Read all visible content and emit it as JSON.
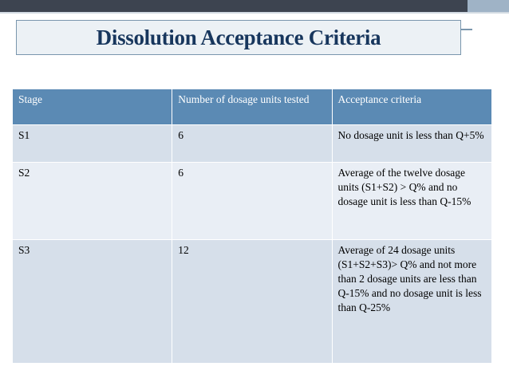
{
  "slide": {
    "title": "Dissolution Acceptance Criteria"
  },
  "table": {
    "headers": [
      "Stage",
      "Number of dosage units tested",
      "Acceptance criteria"
    ],
    "rows": [
      [
        "S1",
        "6",
        "No dosage unit is less than Q+5%"
      ],
      [
        "S2",
        "6",
        "Average of the twelve dosage units (S1+S2) > Q% and no dosage unit is less than Q-15%"
      ],
      [
        "S3",
        "12",
        "Average of 24 dosage units (S1+S2+S3)> Q% and not more than 2 dosage units are less than Q-15% and no dosage unit is less than Q-25%"
      ]
    ]
  },
  "colors": {
    "header_bg": "#5b8ab4",
    "row_bg": "#d6dfea",
    "title_text": "#17365d",
    "top_bar": "#3d4450"
  }
}
